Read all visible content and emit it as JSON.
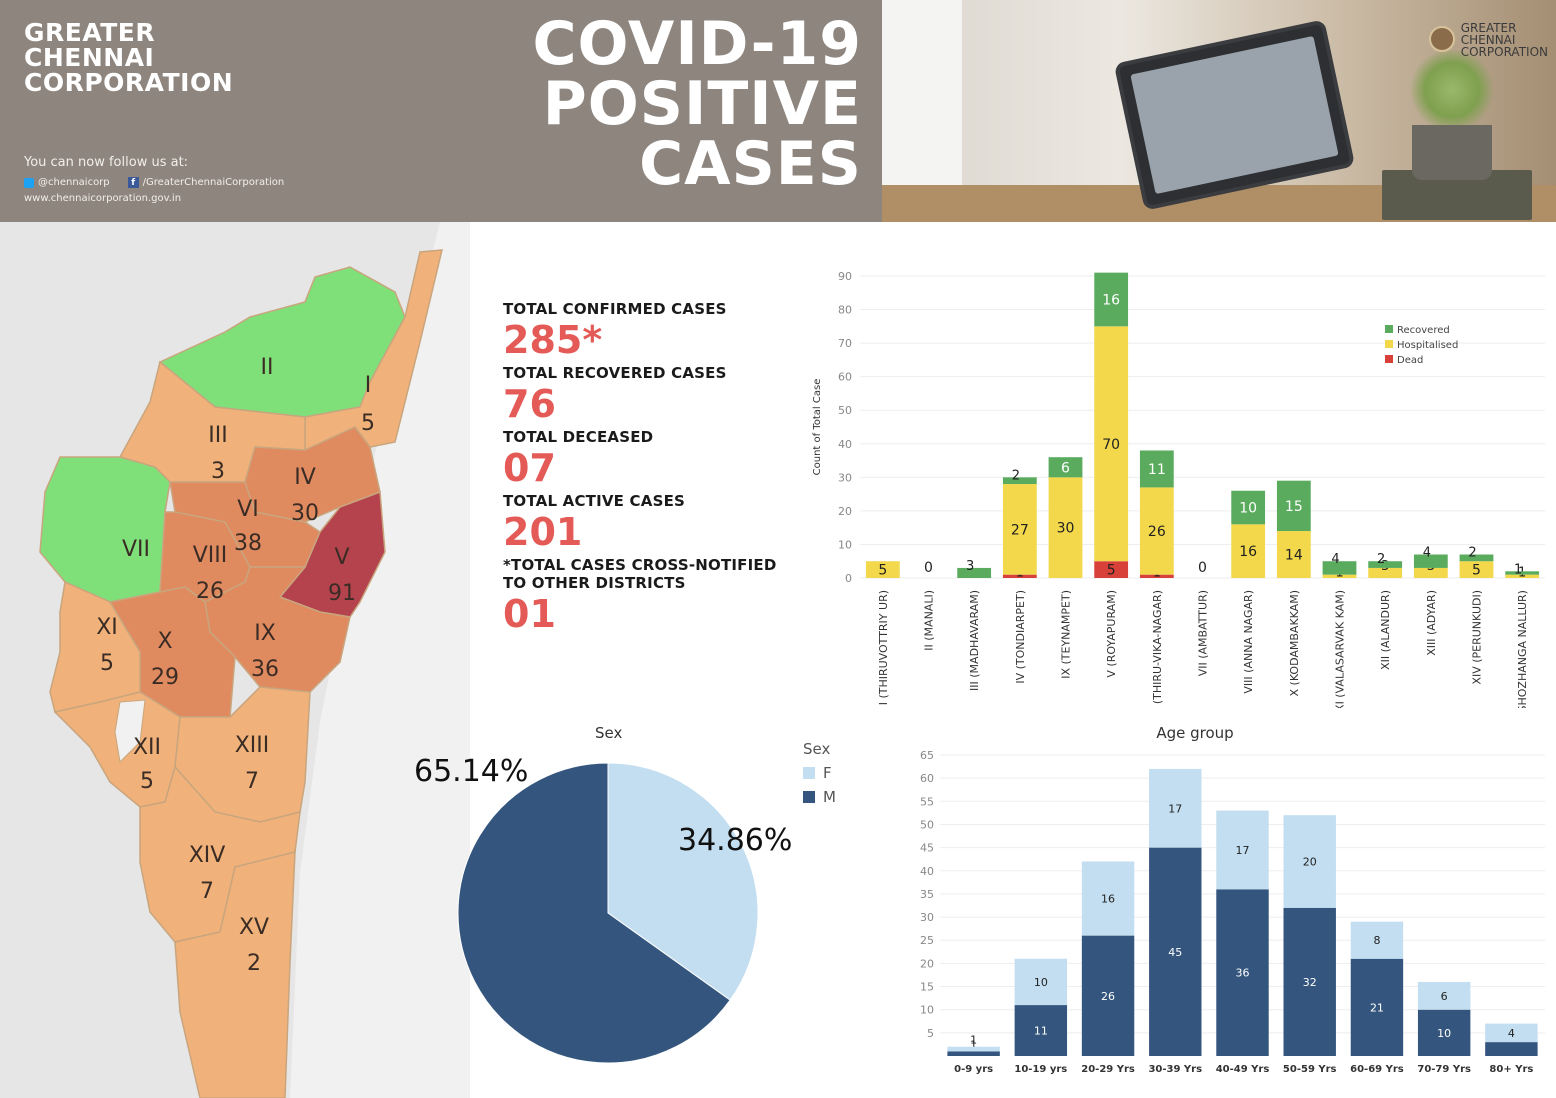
{
  "header": {
    "org_line1": "GREATER",
    "org_line2": "CHENNAI",
    "org_line3": "CORPORATION",
    "follow_text": "You can now follow us at:",
    "twitter_handle": "@chennaicorp",
    "facebook_handle": "/GreaterChennaiCorporation",
    "website": "www.chennaicorporation.gov.in",
    "title_line1": "COVID-19",
    "title_line2": "POSITIVE",
    "title_line3": "CASES",
    "photo_logo_line1": "GREATER",
    "photo_logo_line2": "CHENNAI",
    "photo_logo_line3": "CORPORATION"
  },
  "map": {
    "zones": [
      {
        "name": "I",
        "count": "5",
        "status": "orange"
      },
      {
        "name": "II",
        "count": "",
        "status": "green"
      },
      {
        "name": "III",
        "count": "3",
        "status": "orange"
      },
      {
        "name": "IV",
        "count": "30",
        "status": "dark-orange"
      },
      {
        "name": "V",
        "count": "91",
        "status": "red"
      },
      {
        "name": "VI",
        "count": "38",
        "status": "dark-orange"
      },
      {
        "name": "VII",
        "count": "",
        "status": "green"
      },
      {
        "name": "VIII",
        "count": "26",
        "status": "dark-orange"
      },
      {
        "name": "IX",
        "count": "36",
        "status": "dark-orange"
      },
      {
        "name": "X",
        "count": "29",
        "status": "dark-orange"
      },
      {
        "name": "XI",
        "count": "5",
        "status": "orange"
      },
      {
        "name": "XII",
        "count": "5",
        "status": "orange"
      },
      {
        "name": "XIII",
        "count": "7",
        "status": "orange"
      },
      {
        "name": "XIV",
        "count": "7",
        "status": "orange"
      },
      {
        "name": "XV",
        "count": "2",
        "status": "orange"
      }
    ],
    "colors": {
      "green": "#7fe07a",
      "orange": "#f0b27a",
      "dark-orange": "#e08a60",
      "red": "#b5434e",
      "sea": "#f1f1f1"
    }
  },
  "stats": {
    "confirmed_label": "TOTAL CONFIRMED CASES",
    "confirmed_value": "285*",
    "recovered_label": "TOTAL RECOVERED CASES",
    "recovered_value": "76",
    "deceased_label": "TOTAL DECEASED",
    "deceased_value": "07",
    "active_label": "TOTAL ACTIVE CASES",
    "active_value": "201",
    "cross_label_1": "*TOTAL CASES CROSS-NOTIFIED",
    "cross_label_2": "TO OTHER DISTRICTS",
    "cross_value": "01"
  },
  "chart_data": [
    {
      "type": "bar",
      "stacked": true,
      "ylabel": "Count of Total Case",
      "ylim": [
        0,
        90
      ],
      "yticks": [
        0,
        10,
        20,
        30,
        40,
        50,
        60,
        70,
        80,
        90
      ],
      "categories": [
        "I (THIRUVOTTRIY UR)",
        "II (MANALI)",
        "III (MADHAVARAM)",
        "IV (TONDIARPET)",
        "IX (TEYNAMPET)",
        "V (ROYAPURAM)",
        "VI (THIRU-VIKA-NAGAR)",
        "VII (AMBATTUR)",
        "VIII (ANNA NAGAR)",
        "X (KODAMBAKKAM)",
        "XI (VALASARVAK KAM)",
        "XII (ALANDUR)",
        "XIII (ADYAR)",
        "XIV (PERUNKUDI)",
        "XV (SHOZHANGA NALLUR)"
      ],
      "series": [
        {
          "name": "Dead",
          "color": "#d8403a",
          "values": [
            0,
            0,
            0,
            1,
            0,
            5,
            1,
            0,
            0,
            0,
            0,
            0,
            0,
            0,
            0
          ]
        },
        {
          "name": "Hospitalised",
          "color": "#f2d84a",
          "values": [
            5,
            0,
            0,
            27,
            30,
            70,
            26,
            0,
            16,
            14,
            1,
            3,
            3,
            5,
            1
          ]
        },
        {
          "name": "Recovered",
          "color": "#5aab5e",
          "values": [
            0,
            0,
            3,
            2,
            6,
            16,
            11,
            0,
            10,
            15,
            4,
            2,
            4,
            2,
            1
          ]
        }
      ],
      "totals": [
        5,
        0,
        3,
        30,
        36,
        91,
        38,
        0,
        26,
        29,
        5,
        5,
        7,
        7,
        2
      ],
      "legend": [
        "Recovered",
        "Hospitalised",
        "Dead"
      ],
      "legend_position": "top-right"
    },
    {
      "type": "pie",
      "title": "Sex",
      "legend_title": "Sex",
      "slices": [
        {
          "label": "F",
          "value": 34.86,
          "text": "34.86%",
          "color": "#c3def0"
        },
        {
          "label": "M",
          "value": 65.14,
          "text": "65.14%",
          "color": "#34567e"
        }
      ]
    },
    {
      "type": "bar",
      "stacked": true,
      "title": "Age group",
      "ylim": [
        0,
        65
      ],
      "yticks": [
        5,
        10,
        15,
        20,
        25,
        30,
        35,
        40,
        45,
        50,
        55,
        60,
        65
      ],
      "categories": [
        "0-9 yrs",
        "10-19 yrs",
        "20-29 Yrs",
        "30-39 Yrs",
        "40-49 Yrs",
        "50-59 Yrs",
        "60-69 Yrs",
        "70-79 Yrs",
        "80+ Yrs"
      ],
      "series": [
        {
          "name": "M",
          "color": "#34567e",
          "values": [
            1,
            11,
            26,
            45,
            36,
            32,
            21,
            10,
            3
          ]
        },
        {
          "name": "F",
          "color": "#c3def0",
          "values": [
            1,
            10,
            16,
            17,
            17,
            20,
            8,
            6,
            4
          ]
        }
      ]
    }
  ]
}
